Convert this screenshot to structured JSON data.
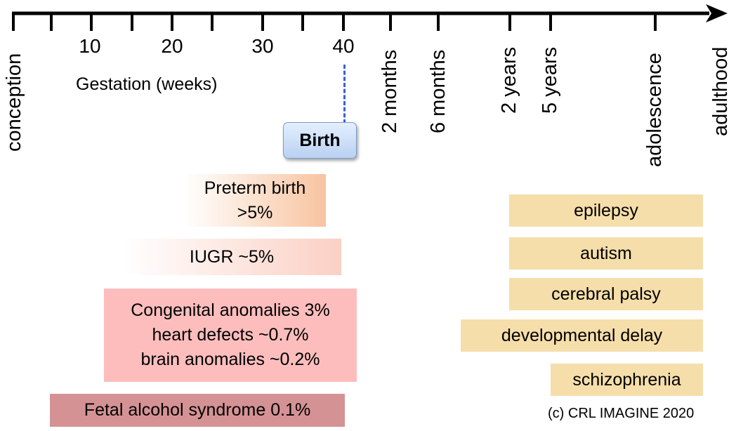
{
  "axis": {
    "week_ticks": [
      "10",
      "20",
      "30",
      "40"
    ],
    "gestation_label": "Gestation (weeks)",
    "period_labels": [
      "conception",
      "2 months",
      "6 months",
      "2 years",
      "5 years",
      "adolescence",
      "adulthood"
    ]
  },
  "birth": {
    "label": "Birth"
  },
  "prenatal": {
    "preterm": {
      "line1": "Preterm birth",
      "line2": ">5%"
    },
    "iugr": {
      "text": "IUGR ~5%"
    },
    "congenital": {
      "line1": "Congenital anomalies 3%",
      "line2": "heart defects ~0.7%",
      "line3": "brain anomalies ~0.2%"
    },
    "fas": {
      "text": "Fetal alcohol syndrome 0.1%"
    }
  },
  "postnatal": {
    "epilepsy": "epilepsy",
    "autism": "autism",
    "cerebral_palsy": "cerebral palsy",
    "developmental_delay": "developmental delay",
    "schizophrenia": "schizophrenia"
  },
  "copyright": "(c) CRL IMAGINE 2020",
  "colors": {
    "birth_fill": "#c9dcf5",
    "birth_dash": "#3a5fd6",
    "preterm": "#f8c4a0",
    "iugr": "#fbd0c4",
    "congenital": "#fdbdbd",
    "fas": "#d59294",
    "postnatal": "#f5deaa"
  }
}
